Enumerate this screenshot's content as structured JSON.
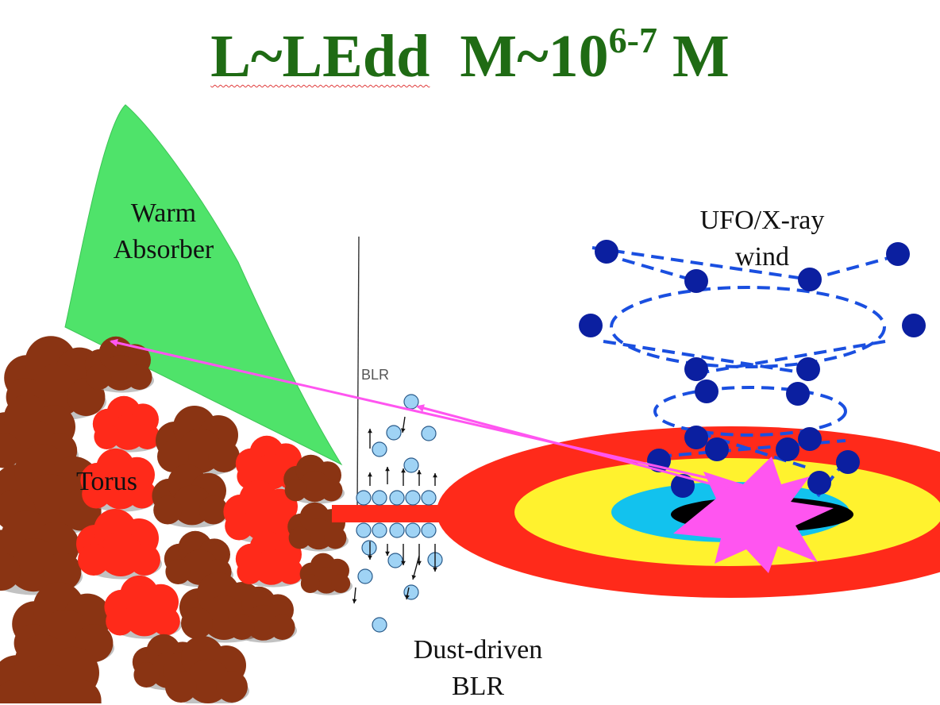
{
  "title": {
    "main": "L~LEdd",
    "mass_prefix": "M~10",
    "mass_exponent": "6-7",
    "mass_suffix": " M"
  },
  "labels": {
    "warm_absorber": [
      "Warm",
      "Absorber"
    ],
    "ufo_wind": [
      "UFO/X-ray",
      "wind"
    ],
    "torus": "Torus",
    "blr": "BLR",
    "dust_driven_blr": [
      "Dust-driven",
      "BLR"
    ]
  },
  "colors": {
    "title": "#1f6b14",
    "warm_absorber": "#4fe36a",
    "cloud_brown": "#8a3413",
    "cloud_red": "#ff2a1a",
    "disk_outer": "#ff2a1a",
    "disk_middle": "#fff22e",
    "disk_inner": "#12c2ee",
    "flare": "#ff55f0",
    "wind_dots": "#0b1fa0",
    "wind_lines": "#1a4fe0",
    "blr_clouds": "#9fd3f5",
    "arrows": "#ff55f0"
  },
  "icons": [
    "cloud-icon",
    "wind-clump-icon",
    "blr-cloud-icon",
    "flare-icon",
    "arrow-icon"
  ]
}
